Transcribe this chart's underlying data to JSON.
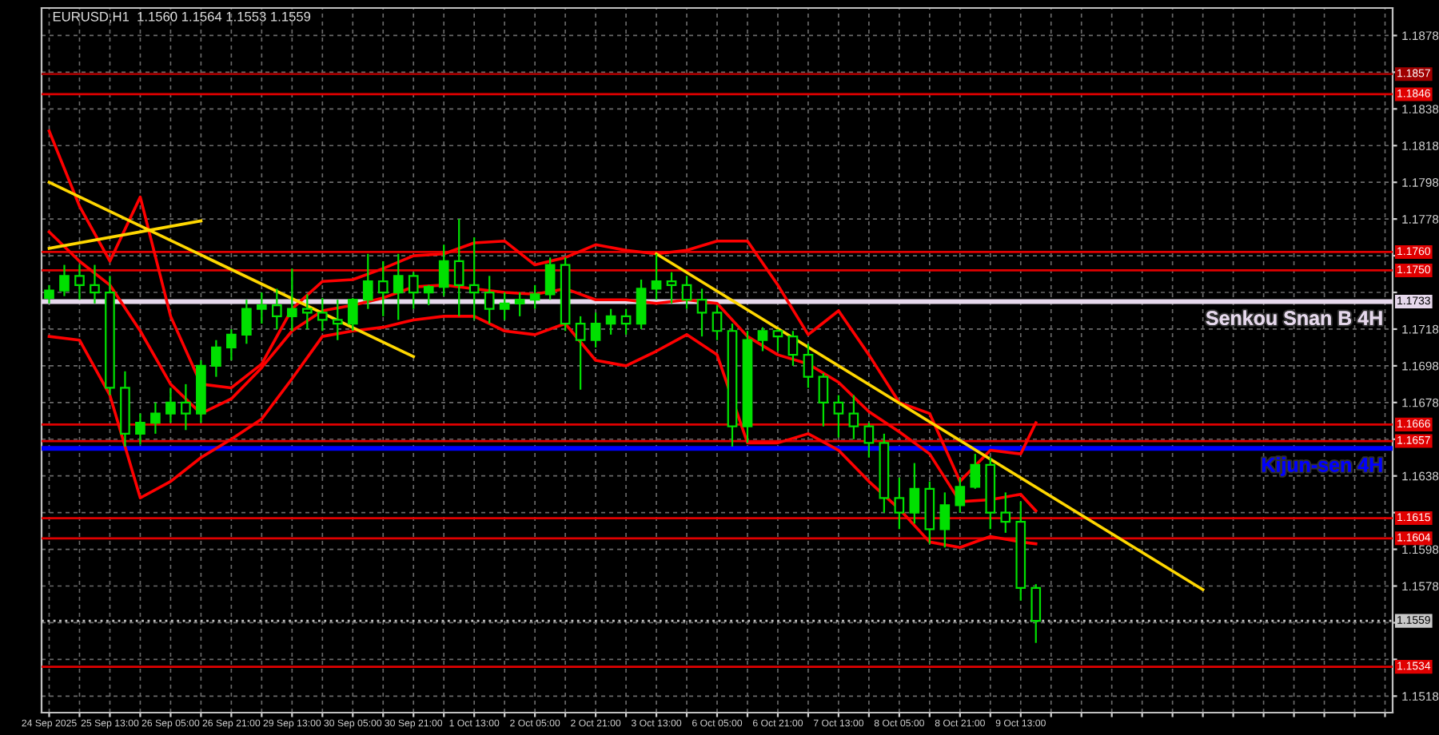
{
  "chart_data": {
    "type": "candlestick",
    "title": "EURUSD,H1  1.1560 1.1564 1.1553 1.1559",
    "color": "#00e000",
    "categories": [
      "24 Sep 2025",
      null,
      null,
      null,
      "25 Sep 13:00",
      null,
      null,
      null,
      "26 Sep 05:00",
      null,
      null,
      null,
      "26 Sep 21:00",
      null,
      null,
      null,
      "29 Sep 13:00",
      null,
      null,
      null,
      "30 Sep 05:00",
      null,
      null,
      null,
      "30 Sep 21:00",
      null,
      null,
      null,
      "1 Oct 13:00",
      null,
      null,
      null,
      "2 Oct 05:00",
      null,
      null,
      null,
      "2 Oct 21:00",
      null,
      null,
      null,
      "3 Oct 13:00",
      null,
      null,
      null,
      "6 Oct 05:00",
      null,
      null,
      null,
      "6 Oct 21:00",
      null,
      null,
      null,
      "7 Oct 13:00",
      null,
      null,
      null,
      "8 Oct 05:00",
      null,
      null,
      null,
      "8 Oct 21:00",
      null,
      null,
      null,
      "9 Oct 13:00",
      null,
      null,
      null,
      null,
      null,
      null,
      null,
      null,
      null,
      null,
      null,
      null,
      null,
      null,
      null,
      null,
      null,
      null,
      null,
      null,
      null,
      null,
      null,
      null
    ],
    "ohlc": [
      [
        1.1735,
        1.1742,
        1.1732,
        1.1739
      ],
      [
        1.1739,
        1.1753,
        1.1736,
        1.1747
      ],
      [
        1.1747,
        1.1753,
        1.1734,
        1.1742
      ],
      [
        1.1742,
        1.1753,
        1.1732,
        1.1738
      ],
      [
        1.1738,
        1.1747,
        1.1682,
        1.1686
      ],
      [
        1.1686,
        1.1695,
        1.1654,
        1.1661
      ],
      [
        1.1661,
        1.1672,
        1.1655,
        1.1667
      ],
      [
        1.1667,
        1.1678,
        1.1661,
        1.1672
      ],
      [
        1.1672,
        1.1686,
        1.1667,
        1.1678
      ],
      [
        1.1678,
        1.1688,
        1.1663,
        1.1672
      ],
      [
        1.1672,
        1.1701,
        1.1667,
        1.1698
      ],
      [
        1.1698,
        1.1712,
        1.1692,
        1.1708
      ],
      [
        1.1708,
        1.1718,
        1.1701,
        1.1715
      ],
      [
        1.1715,
        1.1734,
        1.171,
        1.1729
      ],
      [
        1.1729,
        1.1738,
        1.1721,
        1.1731
      ],
      [
        1.1731,
        1.174,
        1.1718,
        1.1725
      ],
      [
        1.1725,
        1.1751,
        1.1717,
        1.1729
      ],
      [
        1.1729,
        1.1737,
        1.1718,
        1.1727
      ],
      [
        1.1727,
        1.1735,
        1.1717,
        1.1723
      ],
      [
        1.1723,
        1.1734,
        1.1712,
        1.1721
      ],
      [
        1.1721,
        1.1735,
        1.1717,
        1.1734
      ],
      [
        1.1734,
        1.1759,
        1.1729,
        1.1744
      ],
      [
        1.1744,
        1.1755,
        1.1725,
        1.1738
      ],
      [
        1.1738,
        1.1759,
        1.1723,
        1.1747
      ],
      [
        1.1747,
        1.1749,
        1.1729,
        1.1738
      ],
      [
        1.1738,
        1.1742,
        1.1731,
        1.1741
      ],
      [
        1.1741,
        1.1764,
        1.1736,
        1.1755
      ],
      [
        1.1755,
        1.1778,
        1.1725,
        1.1742
      ],
      [
        1.1742,
        1.1768,
        1.1723,
        1.1738
      ],
      [
        1.1738,
        1.1747,
        1.1721,
        1.1729
      ],
      [
        1.1729,
        1.1738,
        1.1723,
        1.1732
      ],
      [
        1.1732,
        1.1738,
        1.1725,
        1.1734
      ],
      [
        1.1734,
        1.1742,
        1.1729,
        1.1737
      ],
      [
        1.1737,
        1.1757,
        1.1734,
        1.1753
      ],
      [
        1.1753,
        1.1757,
        1.1717,
        1.1721
      ],
      [
        1.1721,
        1.1725,
        1.1685,
        1.1712
      ],
      [
        1.1712,
        1.1727,
        1.1708,
        1.1721
      ],
      [
        1.1721,
        1.1729,
        1.1715,
        1.1725
      ],
      [
        1.1725,
        1.1729,
        1.1715,
        1.1721
      ],
      [
        1.1721,
        1.1745,
        1.1718,
        1.174
      ],
      [
        1.174,
        1.1759,
        1.1734,
        1.1744
      ],
      [
        1.1744,
        1.1749,
        1.1732,
        1.1742
      ],
      [
        1.1742,
        1.1747,
        1.1729,
        1.1734
      ],
      [
        1.1734,
        1.174,
        1.1714,
        1.1727
      ],
      [
        1.1727,
        1.1731,
        1.1712,
        1.1717
      ],
      [
        1.1717,
        1.1721,
        1.1654,
        1.1665
      ],
      [
        1.1665,
        1.1717,
        1.1656,
        1.1712
      ],
      [
        1.1712,
        1.1719,
        1.1706,
        1.1717
      ],
      [
        1.1717,
        1.1718,
        1.1706,
        1.1714
      ],
      [
        1.1714,
        1.1717,
        1.1698,
        1.1704
      ],
      [
        1.1704,
        1.171,
        1.1686,
        1.1692
      ],
      [
        1.1692,
        1.1694,
        1.1665,
        1.1678
      ],
      [
        1.1678,
        1.1682,
        1.1659,
        1.1672
      ],
      [
        1.1672,
        1.1682,
        1.1658,
        1.1665
      ],
      [
        1.1665,
        1.1667,
        1.1648,
        1.1656
      ],
      [
        1.1656,
        1.1661,
        1.1618,
        1.1626
      ],
      [
        1.1626,
        1.1637,
        1.1609,
        1.1618
      ],
      [
        1.1618,
        1.1645,
        1.1612,
        1.1631
      ],
      [
        1.1631,
        1.1635,
        1.1601,
        1.1609
      ],
      [
        1.1609,
        1.1629,
        1.1599,
        1.1622
      ],
      [
        1.1622,
        1.1637,
        1.1618,
        1.1632
      ],
      [
        1.1632,
        1.165,
        1.1631,
        1.1644
      ],
      [
        1.1644,
        1.1648,
        1.1609,
        1.1618
      ],
      [
        1.1618,
        1.1629,
        1.1607,
        1.1613
      ],
      [
        1.1613,
        1.1624,
        1.157,
        1.1577
      ],
      [
        1.1577,
        1.1579,
        1.1547,
        1.1559
      ],
      null,
      null,
      null,
      null,
      null,
      null,
      null,
      null,
      null,
      null,
      null,
      null,
      null,
      null,
      null,
      null,
      null,
      null,
      null,
      null,
      null,
      null,
      null
    ],
    "series": [
      {
        "type": "line",
        "color": "#ff0000",
        "values": [
          1.1826,
          null,
          1.1785,
          null,
          1.1755,
          null,
          1.179,
          null,
          1.1725,
          null,
          1.1688,
          null,
          1.1686,
          null,
          1.1699,
          null,
          1.1729,
          null,
          1.1744,
          null,
          1.1745,
          null,
          1.1751,
          null,
          1.1758,
          null,
          1.1759,
          null,
          1.1765,
          null,
          1.1766,
          null,
          1.1753,
          null,
          1.1757,
          null,
          1.1764,
          null,
          1.1761,
          null,
          1.1759,
          null,
          1.1761,
          null,
          1.1766,
          null,
          1.1766,
          null,
          1.1742,
          null,
          1.1715,
          null,
          1.1728,
          null,
          1.1704,
          null,
          1.1678,
          null,
          1.1672,
          null,
          1.1635,
          null,
          1.1652,
          null,
          1.165,
          1.1667,
          null,
          null,
          null,
          null,
          null,
          null,
          null,
          null,
          null,
          null,
          null,
          null,
          null,
          null,
          null,
          null,
          null,
          null,
          null,
          null,
          null,
          null,
          null
        ]
      },
      {
        "type": "line",
        "color": "#ff0000",
        "values": [
          1.1771,
          null,
          1.1755,
          null,
          1.1742,
          null,
          1.1717,
          null,
          1.1688,
          null,
          1.1672,
          null,
          1.168,
          null,
          1.1697,
          null,
          1.1717,
          null,
          1.1728,
          null,
          1.1731,
          null,
          1.1735,
          null,
          1.1741,
          null,
          1.1742,
          null,
          1.174,
          null,
          1.1738,
          null,
          1.1737,
          null,
          1.174,
          null,
          1.1734,
          null,
          1.1734,
          null,
          1.1732,
          null,
          1.1734,
          null,
          1.1732,
          null,
          1.1714,
          null,
          1.1704,
          null,
          1.1699,
          null,
          1.1689,
          null,
          1.1673,
          null,
          1.1662,
          null,
          1.165,
          null,
          1.1624,
          null,
          1.1625,
          null,
          1.1628,
          1.1619,
          null,
          null,
          null,
          null,
          null,
          null,
          null,
          null,
          null,
          null,
          null,
          null,
          null,
          null,
          null,
          null,
          null,
          null,
          null,
          null,
          null,
          null,
          null
        ]
      },
      {
        "type": "line",
        "color": "#ff0000",
        "values": [
          1.1714,
          null,
          1.1712,
          null,
          1.1682,
          null,
          1.1626,
          null,
          1.1635,
          null,
          1.1648,
          null,
          1.1658,
          null,
          1.1669,
          null,
          1.1691,
          null,
          1.1714,
          null,
          1.1717,
          null,
          1.1719,
          null,
          1.1723,
          null,
          1.1725,
          null,
          1.1725,
          null,
          1.1717,
          null,
          1.1715,
          null,
          1.1721,
          null,
          1.1701,
          null,
          1.1698,
          null,
          1.1706,
          null,
          1.1715,
          null,
          1.1704,
          null,
          1.1656,
          null,
          1.1656,
          null,
          1.1661,
          null,
          1.1652,
          null,
          1.1635,
          null,
          1.162,
          null,
          1.1602,
          null,
          1.1599,
          null,
          1.1605,
          null,
          1.1602,
          1.1601,
          null,
          null,
          null,
          null,
          null,
          null,
          null,
          null,
          null,
          null,
          null,
          null,
          null,
          null,
          null,
          null,
          null,
          null,
          null,
          null,
          null,
          null,
          null
        ]
      },
      {
        "type": "line",
        "color": "#ffd700",
        "values": [
          1.1798,
          null,
          null,
          null,
          null,
          null,
          null,
          null,
          null,
          null,
          null,
          null,
          null,
          null,
          null,
          null,
          null,
          null,
          null,
          null,
          null,
          null,
          null,
          null,
          1.1703,
          null,
          null,
          null,
          null,
          null,
          null,
          null,
          null,
          null,
          null,
          null,
          null,
          null,
          null,
          null,
          null,
          null,
          null,
          null,
          null,
          null,
          null,
          null,
          null,
          null,
          null,
          null,
          null,
          null,
          null,
          null,
          null,
          null,
          null,
          null,
          null,
          null,
          null,
          null,
          null,
          null,
          null,
          null,
          null,
          null,
          null,
          null,
          null,
          null,
          null,
          null,
          null,
          null,
          null,
          null,
          null,
          null,
          null,
          null,
          null,
          null,
          null,
          null,
          null
        ]
      },
      {
        "type": "line",
        "color": "#ffd700",
        "values": [
          1.1762,
          null,
          null,
          null,
          null,
          null,
          null,
          null,
          null,
          null,
          1.1777,
          null,
          null,
          null,
          null,
          null,
          null,
          null,
          null,
          null,
          null,
          null,
          null,
          null,
          null,
          null,
          null,
          null,
          null,
          null,
          null,
          null,
          null,
          null,
          null,
          null,
          null,
          null,
          null,
          null,
          null,
          null,
          null,
          null,
          null,
          null,
          null,
          null,
          null,
          null,
          null,
          null,
          null,
          null,
          null,
          null,
          null,
          null,
          null,
          null,
          null,
          null,
          null,
          null,
          null,
          null,
          null,
          null,
          null,
          null,
          null,
          null,
          null,
          null,
          null,
          null,
          null,
          null,
          null,
          null,
          null,
          null,
          null,
          null,
          null,
          null,
          null,
          null,
          null
        ]
      },
      {
        "type": "line",
        "color": "#ffd700",
        "values": [
          null,
          null,
          null,
          null,
          null,
          null,
          null,
          null,
          null,
          null,
          null,
          null,
          null,
          null,
          null,
          null,
          null,
          null,
          null,
          null,
          null,
          null,
          null,
          null,
          null,
          null,
          null,
          null,
          null,
          null,
          null,
          null,
          null,
          null,
          null,
          null,
          null,
          null,
          null,
          null,
          1.1759,
          null,
          null,
          null,
          null,
          null,
          null,
          null,
          null,
          null,
          null,
          null,
          null,
          null,
          null,
          null,
          null,
          null,
          null,
          null,
          null,
          null,
          null,
          null,
          null,
          null,
          null,
          null,
          null,
          null,
          null,
          null,
          null,
          null,
          null,
          null,
          1.1576,
          null,
          null,
          null,
          null,
          null,
          null,
          null,
          null,
          null,
          null,
          null,
          null
        ]
      }
    ],
    "ref_lines": [
      {
        "axis": "y",
        "value": 1.1857,
        "label": "1.1857",
        "color": "#a00000",
        "line_style": "solid"
      },
      {
        "axis": "y",
        "value": 1.1846,
        "label": "1.1846",
        "color": "#e00000",
        "line_style": "solid"
      },
      {
        "axis": "y",
        "value": 1.176,
        "label": "1.1760",
        "color": "#e00000",
        "line_style": "solid"
      },
      {
        "axis": "y",
        "value": 1.175,
        "label": "1.1750",
        "color": "#e00000",
        "line_style": "solid"
      },
      {
        "axis": "y",
        "value": 1.1733,
        "label": "1.1733",
        "color": "#e6d8ec",
        "line_style": "solid"
      },
      {
        "axis": "y",
        "value": 1.1666,
        "label": "1.1666",
        "color": "#e00000",
        "line_style": "solid"
      },
      {
        "axis": "y",
        "value": 1.1653,
        "label": null,
        "color": "#0000ff",
        "line_style": "solid"
      },
      {
        "axis": "y",
        "value": 1.1657,
        "label": "1.1657",
        "color": "#e00000",
        "line_style": "solid"
      },
      {
        "axis": "y",
        "value": 1.1615,
        "label": "1.1615",
        "color": "#e00000",
        "line_style": "solid"
      },
      {
        "axis": "y",
        "value": 1.1604,
        "label": "1.1604",
        "color": "#e00000",
        "line_style": "solid"
      },
      {
        "axis": "y",
        "value": 1.1559,
        "label": "1.1559",
        "color": "#c8c8c8",
        "line_style": "dotted"
      },
      {
        "axis": "y",
        "value": 1.1534,
        "label": "1.1534",
        "color": "#e00000",
        "line_style": "solid"
      }
    ],
    "ylim": [
      1.1509,
      1.1893
    ],
    "yticks": [
      1.1518,
      {
        "value": 1.1538,
        "label": null
      },
      {
        "value": 1.1558,
        "label": null
      },
      1.1578,
      1.1598,
      {
        "value": 1.1618,
        "label": null
      },
      1.1638,
      {
        "value": 1.1658,
        "label": null
      },
      1.1678,
      1.1698,
      1.1718,
      {
        "value": 1.1738,
        "label": null
      },
      {
        "value": 1.1758,
        "label": null
      },
      1.1778,
      1.1798,
      1.1818,
      1.1838,
      {
        "value": 1.1858,
        "label": null
      },
      1.1878
    ],
    "annotations": [
      {
        "text": "Senkou Snan B 4H",
        "y": 1.1733
      },
      {
        "text": "Kijun-sen 4H",
        "y": 1.1653
      }
    ],
    "grid": true
  }
}
